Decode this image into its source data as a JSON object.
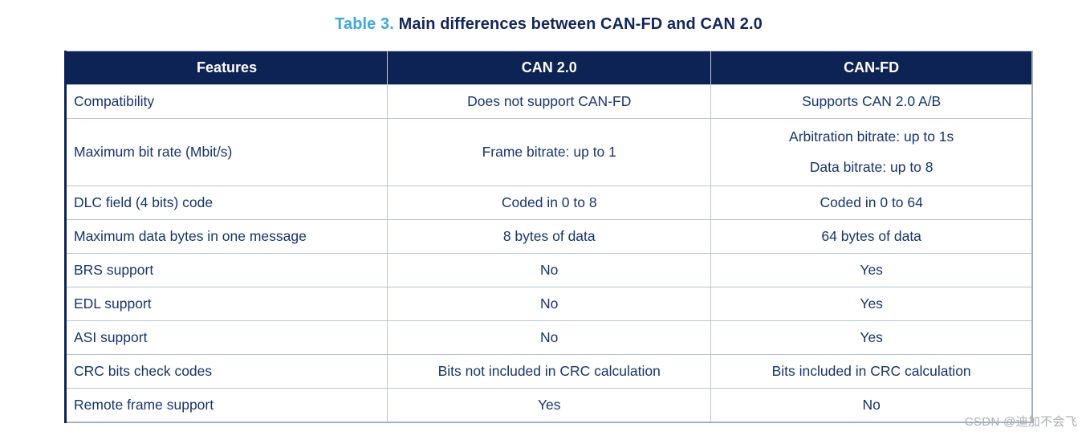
{
  "title": {
    "label": "Table 3.",
    "text": " Main differences between CAN-FD and CAN 2.0"
  },
  "table": {
    "columns": [
      "Features",
      "CAN 2.0",
      "CAN-FD"
    ],
    "rows": [
      {
        "feature": "Compatibility",
        "can20": [
          "Does not support CAN-FD"
        ],
        "canfd": [
          "Supports CAN 2.0 A/B"
        ],
        "tall": false
      },
      {
        "feature": "Maximum bit rate (Mbit/s)",
        "can20": [
          "Frame bitrate: up to 1"
        ],
        "canfd": [
          "Arbitration bitrate: up to 1s",
          "Data bitrate: up to 8"
        ],
        "tall": true
      },
      {
        "feature": "DLC field (4 bits) code",
        "can20": [
          "Coded in 0 to 8"
        ],
        "canfd": [
          "Coded in 0 to 64"
        ],
        "tall": false
      },
      {
        "feature": "Maximum data bytes in one message",
        "can20": [
          "8 bytes of data"
        ],
        "canfd": [
          "64 bytes of data"
        ],
        "tall": false
      },
      {
        "feature": "BRS support",
        "can20": [
          "No"
        ],
        "canfd": [
          "Yes"
        ],
        "tall": false
      },
      {
        "feature": "EDL support",
        "can20": [
          "No"
        ],
        "canfd": [
          "Yes"
        ],
        "tall": false
      },
      {
        "feature": "ASI support",
        "can20": [
          "No"
        ],
        "canfd": [
          "Yes"
        ],
        "tall": false
      },
      {
        "feature": "CRC bits check codes",
        "can20": [
          "Bits not included in CRC calculation"
        ],
        "canfd": [
          "Bits included in CRC calculation"
        ],
        "tall": false
      },
      {
        "feature": "Remote frame support",
        "can20": [
          "Yes"
        ],
        "canfd": [
          "No"
        ],
        "tall": false
      }
    ]
  },
  "watermark": "CSDN @迪加不会飞",
  "colors": {
    "header_bg": "#0e2355",
    "header_text": "#ffffff",
    "cell_text": "#17356b",
    "title_text": "#12265c",
    "title_accent": "#3fa9dc",
    "row_border": "#b9c3d1",
    "watermark_text": "#a9aeb5"
  }
}
